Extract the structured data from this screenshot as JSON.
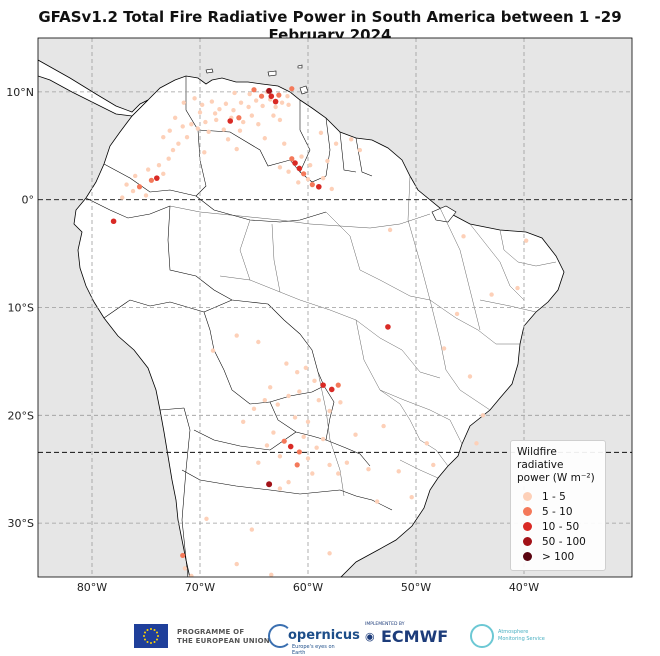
{
  "title": "GFASv1.2 Total Fire Radiative Power in South America between 1 -29 February 2024",
  "map": {
    "lon_range": [
      -85,
      -30
    ],
    "lat_range": [
      -35,
      15
    ],
    "lat_ticks": [
      {
        "value": 10,
        "label": "10°N"
      },
      {
        "value": 0,
        "label": "0°"
      },
      {
        "value": -10,
        "label": "10°S"
      },
      {
        "value": -20,
        "label": "20°S"
      },
      {
        "value": -30,
        "label": "30°S"
      }
    ],
    "lon_ticks": [
      {
        "value": -80,
        "label": "80°W"
      },
      {
        "value": -70,
        "label": "70°W"
      },
      {
        "value": -60,
        "label": "60°W"
      },
      {
        "value": -50,
        "label": "50°W"
      },
      {
        "value": -40,
        "label": "40°W"
      }
    ],
    "reference_lines": [
      0,
      -23.44
    ],
    "grid": true,
    "ocean_color": "#e6e6e6",
    "land_color": "#ffffff",
    "border_color": "#000000"
  },
  "legend": {
    "title": "Wildfire radiative power (W m⁻²)",
    "placement": "bottom-right",
    "classes": [
      {
        "label": "1 - 5",
        "color": "#fdd0b8"
      },
      {
        "label": "5 - 10",
        "color": "#f4795a"
      },
      {
        "label": "10 - 50",
        "color": "#d92a25"
      },
      {
        "label": "50 - 100",
        "color": "#a21218"
      },
      {
        "label": "> 100",
        "color": "#5a0410"
      }
    ]
  },
  "fires": [
    {
      "lon": -71.5,
      "lat": 9.0,
      "c": 0
    },
    {
      "lon": -70.5,
      "lat": 9.4,
      "c": 0
    },
    {
      "lon": -69.8,
      "lat": 8.8,
      "c": 0
    },
    {
      "lon": -68.9,
      "lat": 9.1,
      "c": 0
    },
    {
      "lon": -68.2,
      "lat": 8.4,
      "c": 0
    },
    {
      "lon": -67.6,
      "lat": 8.9,
      "c": 0
    },
    {
      "lon": -66.9,
      "lat": 8.3,
      "c": 0
    },
    {
      "lon": -66.2,
      "lat": 9.0,
      "c": 0
    },
    {
      "lon": -65.5,
      "lat": 8.6,
      "c": 0
    },
    {
      "lon": -64.8,
      "lat": 9.2,
      "c": 0
    },
    {
      "lon": -64.2,
      "lat": 8.7,
      "c": 0
    },
    {
      "lon": -63.5,
      "lat": 9.3,
      "c": 0
    },
    {
      "lon": -63.0,
      "lat": 8.6,
      "c": 0
    },
    {
      "lon": -62.4,
      "lat": 9.0,
      "c": 0
    },
    {
      "lon": -61.8,
      "lat": 8.8,
      "c": 0
    },
    {
      "lon": -67.1,
      "lat": 7.6,
      "c": 0
    },
    {
      "lon": -68.5,
      "lat": 7.4,
      "c": 0
    },
    {
      "lon": -69.5,
      "lat": 7.2,
      "c": 0
    },
    {
      "lon": -70.8,
      "lat": 7.0,
      "c": 0
    },
    {
      "lon": -71.6,
      "lat": 6.8,
      "c": 0
    },
    {
      "lon": -72.3,
      "lat": 7.6,
      "c": 0
    },
    {
      "lon": -66.0,
      "lat": 7.2,
      "c": 0
    },
    {
      "lon": -65.2,
      "lat": 7.8,
      "c": 0
    },
    {
      "lon": -64.6,
      "lat": 7.0,
      "c": 0
    },
    {
      "lon": -67.8,
      "lat": 6.5,
      "c": 0
    },
    {
      "lon": -69.2,
      "lat": 6.3,
      "c": 0
    },
    {
      "lon": -70.2,
      "lat": 6.6,
      "c": 0
    },
    {
      "lon": -66.3,
      "lat": 6.4,
      "c": 0
    },
    {
      "lon": -68.6,
      "lat": 8.0,
      "c": 0
    },
    {
      "lon": -70.0,
      "lat": 8.1,
      "c": 0
    },
    {
      "lon": -63.2,
      "lat": 7.8,
      "c": 0
    },
    {
      "lon": -62.6,
      "lat": 7.4,
      "c": 0
    },
    {
      "lon": -61.9,
      "lat": 9.6,
      "c": 0
    },
    {
      "lon": -63.8,
      "lat": 10.0,
      "c": 0
    },
    {
      "lon": -65.4,
      "lat": 9.8,
      "c": 0
    },
    {
      "lon": -66.8,
      "lat": 9.9,
      "c": 0
    },
    {
      "lon": -72.8,
      "lat": 6.4,
      "c": 0
    },
    {
      "lon": -73.4,
      "lat": 5.8,
      "c": 0
    },
    {
      "lon": -72.0,
      "lat": 5.2,
      "c": 0
    },
    {
      "lon": -71.2,
      "lat": 5.8,
      "c": 0
    },
    {
      "lon": -67.4,
      "lat": 5.6,
      "c": 0
    },
    {
      "lon": -66.6,
      "lat": 4.7,
      "c": 0
    },
    {
      "lon": -63.4,
      "lat": 9.6,
      "c": 2
    },
    {
      "lon": -63.0,
      "lat": 9.1,
      "c": 2
    },
    {
      "lon": -64.3,
      "lat": 9.6,
      "c": 1
    },
    {
      "lon": -62.7,
      "lat": 9.7,
      "c": 1
    },
    {
      "lon": -63.6,
      "lat": 10.1,
      "c": 3
    },
    {
      "lon": -65.0,
      "lat": 10.2,
      "c": 1
    },
    {
      "lon": -67.2,
      "lat": 7.3,
      "c": 2
    },
    {
      "lon": -66.4,
      "lat": 7.6,
      "c": 1
    },
    {
      "lon": -61.5,
      "lat": 10.3,
      "c": 1
    },
    {
      "lon": -64.0,
      "lat": 5.7,
      "c": 0
    },
    {
      "lon": -62.2,
      "lat": 5.2,
      "c": 0
    },
    {
      "lon": -61.5,
      "lat": 3.8,
      "c": 1
    },
    {
      "lon": -61.2,
      "lat": 3.4,
      "c": 2
    },
    {
      "lon": -60.8,
      "lat": 2.9,
      "c": 2
    },
    {
      "lon": -60.4,
      "lat": 2.4,
      "c": 1
    },
    {
      "lon": -60.0,
      "lat": 1.9,
      "c": 0
    },
    {
      "lon": -59.6,
      "lat": 1.4,
      "c": 1
    },
    {
      "lon": -59.0,
      "lat": 1.2,
      "c": 2
    },
    {
      "lon": -58.6,
      "lat": 2.0,
      "c": 0
    },
    {
      "lon": -59.8,
      "lat": 3.2,
      "c": 0
    },
    {
      "lon": -60.6,
      "lat": 4.0,
      "c": 0
    },
    {
      "lon": -61.8,
      "lat": 2.6,
      "c": 0
    },
    {
      "lon": -62.6,
      "lat": 3.0,
      "c": 0
    },
    {
      "lon": -58.2,
      "lat": 3.6,
      "c": 0
    },
    {
      "lon": -57.4,
      "lat": 5.2,
      "c": 0
    },
    {
      "lon": -56.0,
      "lat": 5.6,
      "c": 0
    },
    {
      "lon": -55.2,
      "lat": 4.6,
      "c": 0
    },
    {
      "lon": -57.8,
      "lat": 1.0,
      "c": 0
    },
    {
      "lon": -60.9,
      "lat": 1.6,
      "c": 0
    },
    {
      "lon": -58.8,
      "lat": 6.2,
      "c": 0
    },
    {
      "lon": -74.5,
      "lat": 1.8,
      "c": 1
    },
    {
      "lon": -74.0,
      "lat": 2.0,
      "c": 2
    },
    {
      "lon": -75.6,
      "lat": 1.2,
      "c": 1
    },
    {
      "lon": -76.2,
      "lat": 0.8,
      "c": 0
    },
    {
      "lon": -74.8,
      "lat": 2.8,
      "c": 0
    },
    {
      "lon": -73.8,
      "lat": 3.2,
      "c": 0
    },
    {
      "lon": -75.0,
      "lat": 0.4,
      "c": 0
    },
    {
      "lon": -76.8,
      "lat": 1.4,
      "c": 0
    },
    {
      "lon": -73.4,
      "lat": 2.4,
      "c": 0
    },
    {
      "lon": -72.9,
      "lat": 3.8,
      "c": 0
    },
    {
      "lon": -76.0,
      "lat": 2.2,
      "c": 0
    },
    {
      "lon": -77.2,
      "lat": 0.2,
      "c": 0
    },
    {
      "lon": -78.0,
      "lat": -2.0,
      "c": 2
    },
    {
      "lon": -69.6,
      "lat": 4.4,
      "c": 0
    },
    {
      "lon": -72.5,
      "lat": 4.6,
      "c": 0
    },
    {
      "lon": -62.0,
      "lat": -15.2,
      "c": 0
    },
    {
      "lon": -61.0,
      "lat": -16.0,
      "c": 0
    },
    {
      "lon": -60.2,
      "lat": -15.6,
      "c": 0
    },
    {
      "lon": -59.4,
      "lat": -16.8,
      "c": 0
    },
    {
      "lon": -58.6,
      "lat": -17.2,
      "c": 2
    },
    {
      "lon": -57.8,
      "lat": -17.6,
      "c": 2
    },
    {
      "lon": -57.2,
      "lat": -17.2,
      "c": 1
    },
    {
      "lon": -60.8,
      "lat": -17.8,
      "c": 0
    },
    {
      "lon": -61.8,
      "lat": -18.2,
      "c": 0
    },
    {
      "lon": -59.0,
      "lat": -18.6,
      "c": 0
    },
    {
      "lon": -63.5,
      "lat": -17.4,
      "c": 0
    },
    {
      "lon": -62.8,
      "lat": -19.0,
      "c": 0
    },
    {
      "lon": -64.0,
      "lat": -18.6,
      "c": 0
    },
    {
      "lon": -65.0,
      "lat": -19.4,
      "c": 0
    },
    {
      "lon": -58.0,
      "lat": -19.6,
      "c": 0
    },
    {
      "lon": -57.0,
      "lat": -18.8,
      "c": 0
    },
    {
      "lon": -60.0,
      "lat": -20.6,
      "c": 0
    },
    {
      "lon": -61.2,
      "lat": -20.2,
      "c": 0
    },
    {
      "lon": -63.2,
      "lat": -21.6,
      "c": 0
    },
    {
      "lon": -62.2,
      "lat": -22.4,
      "c": 1
    },
    {
      "lon": -61.6,
      "lat": -22.9,
      "c": 2
    },
    {
      "lon": -60.8,
      "lat": -23.4,
      "c": 1
    },
    {
      "lon": -60.0,
      "lat": -24.0,
      "c": 0
    },
    {
      "lon": -59.2,
      "lat": -23.0,
      "c": 0
    },
    {
      "lon": -58.6,
      "lat": -22.2,
      "c": 0
    },
    {
      "lon": -61.0,
      "lat": -24.6,
      "c": 1
    },
    {
      "lon": -62.6,
      "lat": -23.8,
      "c": 0
    },
    {
      "lon": -63.8,
      "lat": -22.8,
      "c": 0
    },
    {
      "lon": -64.6,
      "lat": -24.4,
      "c": 0
    },
    {
      "lon": -59.6,
      "lat": -25.4,
      "c": 0
    },
    {
      "lon": -58.0,
      "lat": -24.6,
      "c": 0
    },
    {
      "lon": -57.2,
      "lat": -25.4,
      "c": 0
    },
    {
      "lon": -56.4,
      "lat": -24.4,
      "c": 0
    },
    {
      "lon": -60.4,
      "lat": -22.0,
      "c": 0
    },
    {
      "lon": -62.6,
      "lat": -26.8,
      "c": 0
    },
    {
      "lon": -61.8,
      "lat": -26.2,
      "c": 0
    },
    {
      "lon": -63.6,
      "lat": -26.4,
      "c": 3
    },
    {
      "lon": -66.0,
      "lat": -20.6,
      "c": 0
    },
    {
      "lon": -68.8,
      "lat": -14.0,
      "c": 0
    },
    {
      "lon": -64.6,
      "lat": -13.2,
      "c": 0
    },
    {
      "lon": -66.6,
      "lat": -12.6,
      "c": 0
    },
    {
      "lon": -55.6,
      "lat": -21.8,
      "c": 0
    },
    {
      "lon": -54.4,
      "lat": -25.0,
      "c": 0
    },
    {
      "lon": -53.0,
      "lat": -21.0,
      "c": 0
    },
    {
      "lon": -52.6,
      "lat": -11.8,
      "c": 2
    },
    {
      "lon": -47.4,
      "lat": -13.8,
      "c": 0
    },
    {
      "lon": -45.0,
      "lat": -16.4,
      "c": 0
    },
    {
      "lon": -43.8,
      "lat": -20.0,
      "c": 0
    },
    {
      "lon": -44.4,
      "lat": -22.6,
      "c": 0
    },
    {
      "lon": -49.0,
      "lat": -22.6,
      "c": 0
    },
    {
      "lon": -48.4,
      "lat": -24.6,
      "c": 0
    },
    {
      "lon": -51.6,
      "lat": -25.2,
      "c": 0
    },
    {
      "lon": -50.4,
      "lat": -27.6,
      "c": 0
    },
    {
      "lon": -53.6,
      "lat": -28.0,
      "c": 0
    },
    {
      "lon": -52.4,
      "lat": -2.8,
      "c": 0
    },
    {
      "lon": -45.6,
      "lat": -3.4,
      "c": 0
    },
    {
      "lon": -43.0,
      "lat": -8.8,
      "c": 0
    },
    {
      "lon": -46.2,
      "lat": -10.6,
      "c": 0
    },
    {
      "lon": -39.8,
      "lat": -3.8,
      "c": 0
    },
    {
      "lon": -40.6,
      "lat": -8.2,
      "c": 0
    },
    {
      "lon": -71.6,
      "lat": -33.0,
      "c": 1
    },
    {
      "lon": -71.4,
      "lat": -34.2,
      "c": 0
    },
    {
      "lon": -70.8,
      "lat": -34.9,
      "c": 0
    },
    {
      "lon": -69.4,
      "lat": -29.6,
      "c": 0
    },
    {
      "lon": -65.2,
      "lat": -30.6,
      "c": 0
    },
    {
      "lon": -66.6,
      "lat": -33.8,
      "c": 0
    },
    {
      "lon": -63.4,
      "lat": -34.8,
      "c": 0
    },
    {
      "lon": -58.0,
      "lat": -32.8,
      "c": 0
    }
  ],
  "footer": {
    "eu_line1": "PROGRAMME OF",
    "eu_line2": "THE EUROPEAN UNION",
    "copernicus": "opernicus",
    "copernicus_sub": "Europe's eyes on Earth",
    "ecmwf_small": "IMPLEMENTED BY",
    "ecmwf": "ECMWF",
    "cams_line1": "Atmosphere",
    "cams_line2": "Monitoring Service"
  }
}
